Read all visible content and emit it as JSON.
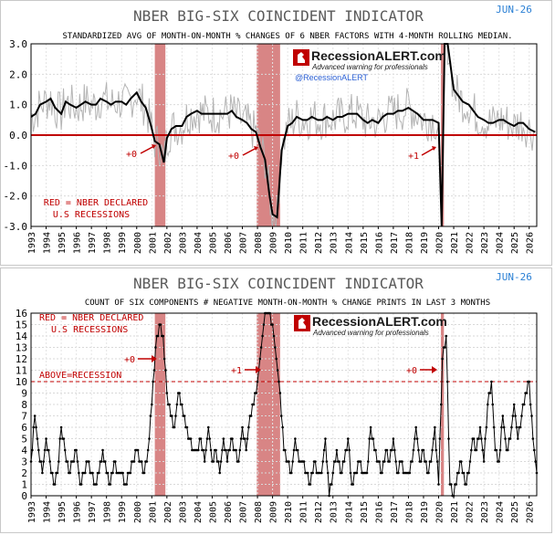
{
  "charts": [
    {
      "title": "NBER BIG-SIX COINCIDENT INDICATOR",
      "date": "JUN-26",
      "subtitle": "STANDARDIZED AVG OF MONTH-ON-MONTH % CHANGES OF 6 NBER FACTORS WITH 4-MONTH ROLLING MEDIAN.",
      "legend_text": [
        "RED = NBER DECLARED",
        "U.S RECESSIONS"
      ],
      "logo": {
        "brand": "RecessionALERT.com",
        "tagline": "Advanced warning for professionals",
        "handle": "@RecessionALERT"
      },
      "annotations": [
        "+0",
        "+0",
        "+1"
      ]
    },
    {
      "title": "NBER BIG-SIX COINCIDENT INDICATOR",
      "date": "JUN-26",
      "subtitle": "COUNT OF SIX COMPONENTS # NEGATIVE MONTH-ON-MONTH % CHANGE PRINTS IN LAST 3 MONTHS",
      "legend_text": [
        "RED = NBER DECLARED",
        "U.S RECESSIONS"
      ],
      "threshold_label": "ABOVE=RECESSION",
      "logo": {
        "brand": "RecessionALERT.com",
        "tagline": "Advanced warning for professionals"
      },
      "annotations": [
        "+0",
        "+1",
        "+0"
      ]
    }
  ],
  "chart_data": [
    {
      "type": "line",
      "x_range": [
        1993,
        2026.5
      ],
      "ylim": [
        -3.0,
        3.0
      ],
      "yticks": [
        "3.0",
        "2.0",
        "1.0",
        "0.0",
        "-1.0",
        "-2.0",
        "-3.0"
      ],
      "xticks": [
        "1993",
        "1994",
        "1995",
        "1996",
        "1997",
        "1998",
        "1999",
        "2000",
        "2001",
        "2002",
        "2003",
        "2004",
        "2005",
        "2006",
        "2007",
        "2008",
        "2009",
        "2010",
        "2011",
        "2012",
        "2013",
        "2014",
        "2015",
        "2016",
        "2017",
        "2018",
        "2019",
        "2020",
        "2021",
        "2022",
        "2023",
        "2024",
        "2025",
        "2026"
      ],
      "recessions": [
        [
          2001.2,
          2001.9
        ],
        [
          2007.95,
          2009.5
        ],
        [
          2020.15,
          2020.35
        ]
      ],
      "zero_line": 0,
      "series": [
        {
          "role": "median",
          "color": "#000000",
          "x": [
            1993.0,
            1993.3,
            1993.6,
            1994.0,
            1994.3,
            1994.6,
            1995.0,
            1995.3,
            1995.6,
            1996.0,
            1996.3,
            1996.6,
            1997.0,
            1997.3,
            1997.6,
            1998.0,
            1998.3,
            1998.6,
            1999.0,
            1999.3,
            1999.6,
            2000.0,
            2000.3,
            2000.6,
            2000.9,
            2001.2,
            2001.5,
            2001.8,
            2002.0,
            2002.3,
            2002.6,
            2003.0,
            2003.3,
            2003.6,
            2004.0,
            2004.3,
            2004.6,
            2005.0,
            2005.3,
            2005.6,
            2006.0,
            2006.3,
            2006.6,
            2007.0,
            2007.3,
            2007.6,
            2007.9,
            2008.2,
            2008.5,
            2008.8,
            2009.0,
            2009.3,
            2009.6,
            2010.0,
            2010.3,
            2010.6,
            2011.0,
            2011.3,
            2011.6,
            2012.0,
            2012.3,
            2012.6,
            2013.0,
            2013.3,
            2013.6,
            2014.0,
            2014.3,
            2014.6,
            2015.0,
            2015.3,
            2015.6,
            2016.0,
            2016.3,
            2016.6,
            2017.0,
            2017.3,
            2017.6,
            2018.0,
            2018.3,
            2018.6,
            2019.0,
            2019.3,
            2019.6,
            2020.0,
            2020.2,
            2020.4,
            2020.6,
            2021.0,
            2021.3,
            2021.6,
            2022.0,
            2022.3,
            2022.6,
            2023.0,
            2023.3,
            2023.6,
            2024.0,
            2024.3,
            2024.6,
            2025.0,
            2025.3,
            2025.6,
            2026.0,
            2026.4
          ],
          "y": [
            0.6,
            0.7,
            1.0,
            1.1,
            1.2,
            0.9,
            0.7,
            1.1,
            1.0,
            0.9,
            1.0,
            1.1,
            1.0,
            1.0,
            1.2,
            1.1,
            1.0,
            1.1,
            1.1,
            1.0,
            1.2,
            1.4,
            1.1,
            0.9,
            0.4,
            -0.2,
            -0.3,
            -0.9,
            -0.1,
            0.2,
            0.3,
            0.3,
            0.6,
            0.7,
            0.8,
            0.7,
            0.7,
            0.7,
            0.7,
            0.7,
            0.7,
            0.8,
            0.6,
            0.5,
            0.4,
            0.2,
            0.1,
            -0.4,
            -0.8,
            -2.0,
            -2.6,
            -2.7,
            -0.5,
            0.3,
            0.4,
            0.6,
            0.5,
            0.5,
            0.6,
            0.5,
            0.5,
            0.6,
            0.5,
            0.6,
            0.6,
            0.7,
            0.7,
            0.7,
            0.5,
            0.4,
            0.5,
            0.4,
            0.6,
            0.7,
            0.7,
            0.8,
            0.8,
            0.9,
            0.8,
            0.7,
            0.5,
            0.5,
            0.5,
            0.4,
            -3.0,
            3.0,
            3.0,
            1.5,
            1.3,
            1.1,
            1.0,
            0.8,
            0.6,
            0.5,
            0.4,
            0.4,
            0.5,
            0.5,
            0.4,
            0.3,
            0.4,
            0.4,
            0.2,
            0.1
          ]
        },
        {
          "role": "monthly",
          "color": "#b4b4b4"
        }
      ]
    },
    {
      "type": "line",
      "x_range": [
        1993,
        2026.5
      ],
      "ylim": [
        0,
        16
      ],
      "yticks": [
        "16",
        "15",
        "14",
        "13",
        "12",
        "11",
        "10",
        "9",
        "8",
        "7",
        "6",
        "5",
        "4",
        "3",
        "2",
        "1",
        "0"
      ],
      "xticks": [
        "1993",
        "1994",
        "1995",
        "1996",
        "1997",
        "1998",
        "1999",
        "2000",
        "2001",
        "2002",
        "2003",
        "2004",
        "2005",
        "2006",
        "2007",
        "2008",
        "2009",
        "2010",
        "2011",
        "2012",
        "2013",
        "2014",
        "2015",
        "2016",
        "2017",
        "2018",
        "2019",
        "2020",
        "2021",
        "2022",
        "2023",
        "2024",
        "2025",
        "2026"
      ],
      "recessions": [
        [
          2001.2,
          2001.9
        ],
        [
          2007.95,
          2009.5
        ],
        [
          2020.15,
          2020.35
        ]
      ],
      "threshold": 10,
      "series": [
        {
          "role": "count",
          "color": "#000000",
          "x": [
            1993.0,
            1993.25,
            1993.5,
            1993.75,
            1994.0,
            1994.25,
            1994.5,
            1994.75,
            1995.0,
            1995.25,
            1995.5,
            1995.75,
            1996.0,
            1996.25,
            1996.5,
            1996.75,
            1997.0,
            1997.25,
            1997.5,
            1997.75,
            1998.0,
            1998.25,
            1998.5,
            1998.75,
            1999.0,
            1999.25,
            1999.5,
            1999.75,
            2000.0,
            2000.25,
            2000.5,
            2000.75,
            2001.0,
            2001.25,
            2001.5,
            2001.75,
            2002.0,
            2002.25,
            2002.5,
            2002.75,
            2003.0,
            2003.25,
            2003.5,
            2003.75,
            2004.0,
            2004.25,
            2004.5,
            2004.75,
            2005.0,
            2005.25,
            2005.5,
            2005.75,
            2006.0,
            2006.25,
            2006.5,
            2006.75,
            2007.0,
            2007.25,
            2007.5,
            2007.75,
            2008.0,
            2008.25,
            2008.5,
            2008.75,
            2009.0,
            2009.25,
            2009.5,
            2009.75,
            2010.0,
            2010.25,
            2010.5,
            2010.75,
            2011.0,
            2011.25,
            2011.5,
            2011.75,
            2012.0,
            2012.25,
            2012.5,
            2012.75,
            2013.0,
            2013.25,
            2013.5,
            2013.75,
            2014.0,
            2014.25,
            2014.5,
            2014.75,
            2015.0,
            2015.25,
            2015.5,
            2015.75,
            2016.0,
            2016.25,
            2016.5,
            2016.75,
            2017.0,
            2017.25,
            2017.5,
            2017.75,
            2018.0,
            2018.25,
            2018.5,
            2018.75,
            2019.0,
            2019.25,
            2019.5,
            2019.75,
            2020.0,
            2020.25,
            2020.5,
            2020.75,
            2021.0,
            2021.25,
            2021.5,
            2021.75,
            2022.0,
            2022.25,
            2022.5,
            2022.75,
            2023.0,
            2023.25,
            2023.5,
            2023.75,
            2024.0,
            2024.25,
            2024.5,
            2024.75,
            2025.0,
            2025.25,
            2025.5,
            2025.75,
            2026.0,
            2026.25,
            2026.5
          ],
          "y": [
            3,
            7,
            4,
            2,
            5,
            3,
            1,
            2,
            6,
            4,
            2,
            3,
            4,
            1,
            2,
            3,
            2,
            1,
            2,
            4,
            2,
            1,
            3,
            2,
            2,
            1,
            2,
            3,
            4,
            3,
            2,
            4,
            8,
            13,
            15,
            14,
            9,
            7,
            6,
            9,
            8,
            6,
            5,
            4,
            4,
            5,
            3,
            6,
            3,
            4,
            2,
            5,
            3,
            5,
            4,
            3,
            6,
            4,
            7,
            8,
            10,
            13,
            16,
            16,
            15,
            12,
            9,
            4,
            3,
            2,
            5,
            3,
            3,
            2,
            1,
            3,
            2,
            2,
            5,
            0,
            2,
            4,
            2,
            3,
            5,
            1,
            2,
            3,
            2,
            2,
            6,
            4,
            3,
            2,
            4,
            3,
            5,
            2,
            3,
            2,
            2,
            3,
            6,
            3,
            4,
            2,
            3,
            6,
            1,
            12,
            14,
            1,
            0,
            2,
            3,
            1,
            2,
            5,
            4,
            6,
            3,
            8,
            10,
            4,
            3,
            7,
            4,
            5,
            8,
            5,
            7,
            9,
            10,
            5,
            2
          ]
        }
      ]
    }
  ]
}
